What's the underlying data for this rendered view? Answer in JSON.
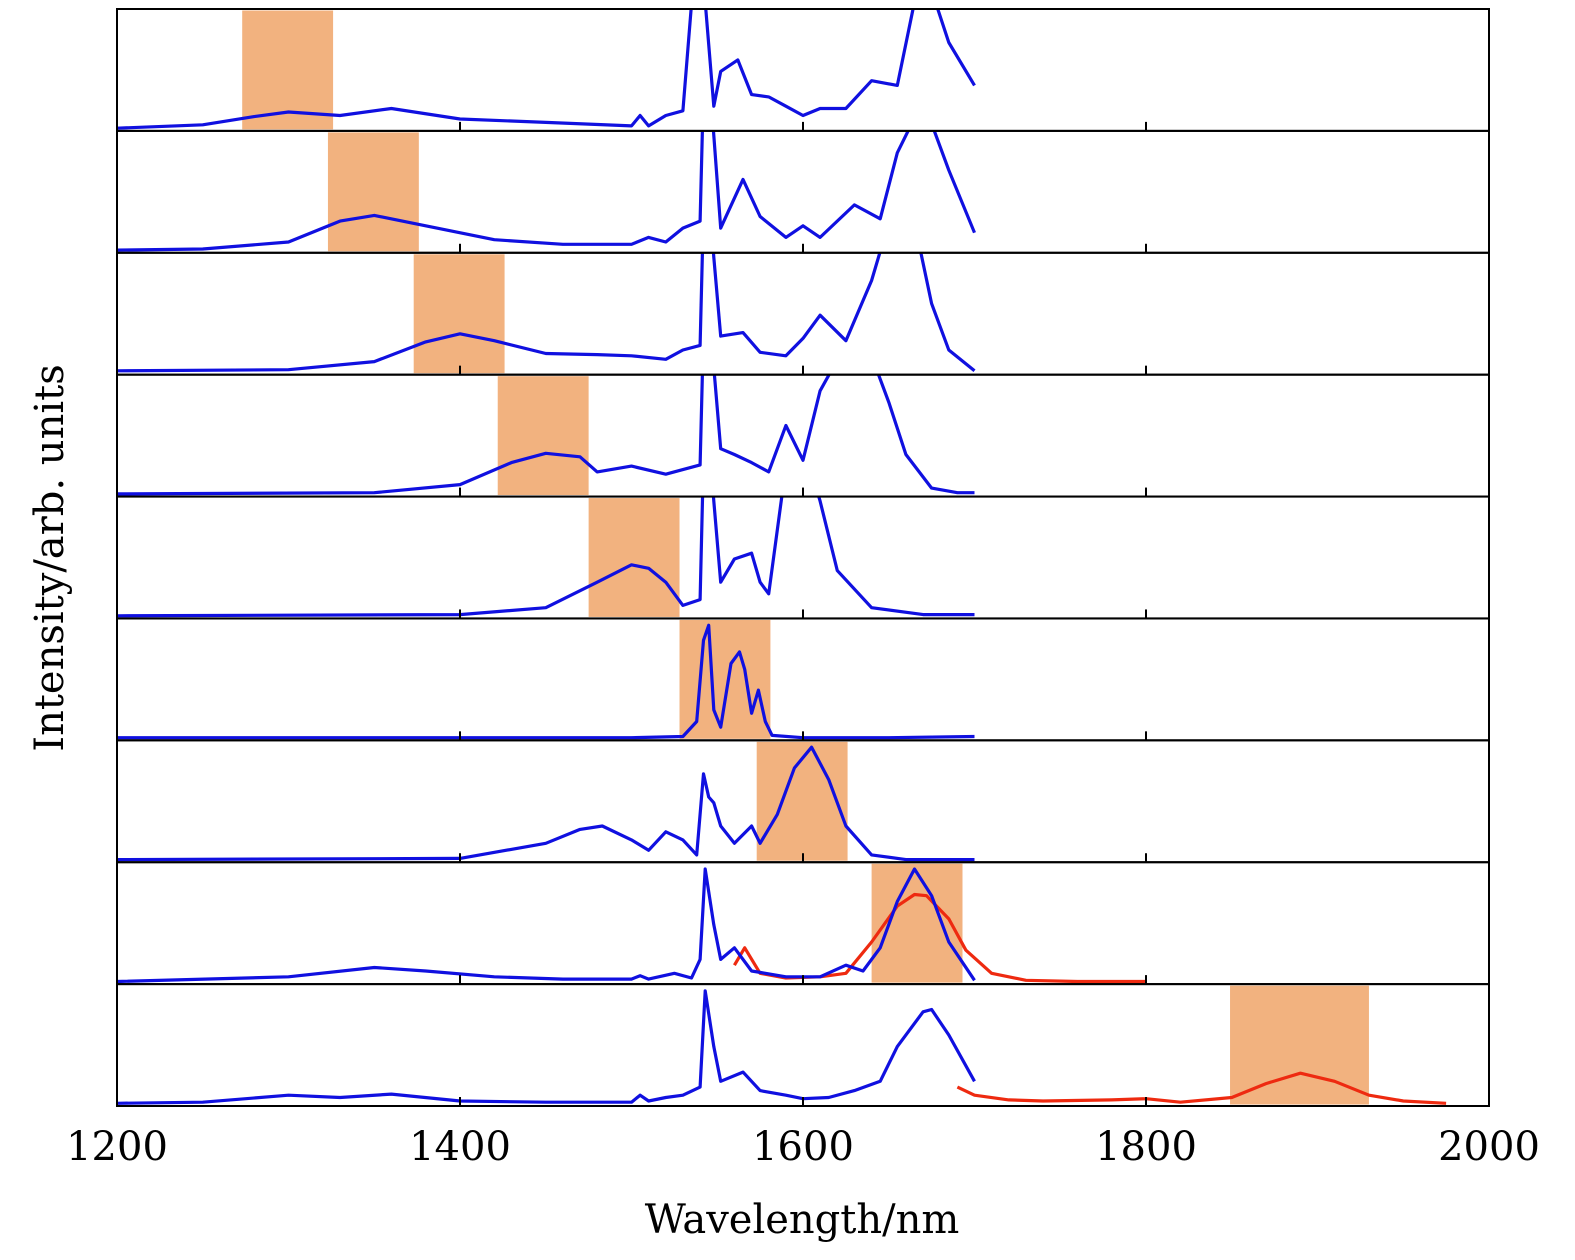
{
  "chart_data": {
    "type": "line",
    "layout": "stacked panels sharing one x axis",
    "xlabel": "Wavelength/nm",
    "ylabel": "Intensity/arb. units",
    "xlim": [
      1200,
      2000
    ],
    "xticks": [
      1200,
      1400,
      1600,
      1800,
      2000
    ],
    "y_tick_labels": "none",
    "grid": false,
    "legend": "none",
    "colors": {
      "measured_spectrum": "#1010e0",
      "extended_spectrum": "#ee2a10",
      "filter_band": "#f2b27f",
      "frame": "#000000"
    },
    "panels": [
      {
        "band_nm": [
          1273,
          1326
        ],
        "series": [
          {
            "color": "measured_spectrum",
            "x": [
              1200,
              1250,
              1280,
              1300,
              1330,
              1360,
              1400,
              1450,
              1500,
              1505,
              1510,
              1520,
              1530,
              1540,
              1543,
              1548,
              1552,
              1562,
              1570,
              1580,
              1590,
              1600,
              1610,
              1625,
              1640,
              1655,
              1665,
              1675,
              1685,
              1700
            ],
            "y": [
              0.01,
              0.04,
              0.11,
              0.15,
              0.12,
              0.18,
              0.09,
              0.06,
              0.03,
              0.12,
              0.03,
              0.12,
              0.16,
              2.0,
              1.1,
              0.2,
              0.5,
              0.6,
              0.3,
              0.28,
              0.2,
              0.12,
              0.18,
              0.18,
              0.42,
              0.38,
              1.1,
              1.2,
              0.75,
              0.38
            ]
          }
        ]
      },
      {
        "band_nm": [
          1323,
          1376
        ],
        "series": [
          {
            "color": "measured_spectrum",
            "x": [
              1200,
              1250,
              1300,
              1330,
              1350,
              1380,
              1420,
              1460,
              1500,
              1510,
              1520,
              1530,
              1540,
              1543,
              1548,
              1552,
              1565,
              1575,
              1590,
              1600,
              1610,
              1630,
              1645,
              1655,
              1670,
              1685,
              1700
            ],
            "y": [
              0.01,
              0.02,
              0.08,
              0.26,
              0.31,
              0.22,
              0.1,
              0.06,
              0.06,
              0.12,
              0.08,
              0.2,
              0.26,
              2.0,
              1.0,
              0.2,
              0.62,
              0.3,
              0.12,
              0.22,
              0.12,
              0.4,
              0.28,
              0.85,
              1.3,
              0.7,
              0.16
            ]
          }
        ]
      },
      {
        "band_nm": [
          1373,
          1426
        ],
        "series": [
          {
            "color": "measured_spectrum",
            "x": [
              1200,
              1300,
              1350,
              1380,
              1400,
              1420,
              1450,
              1480,
              1500,
              1520,
              1530,
              1540,
              1543,
              1548,
              1552,
              1565,
              1575,
              1590,
              1600,
              1610,
              1625,
              1640,
              1650,
              1665,
              1675,
              1685,
              1700
            ],
            "y": [
              0.02,
              0.03,
              0.1,
              0.27,
              0.34,
              0.28,
              0.17,
              0.16,
              0.15,
              0.12,
              0.2,
              0.24,
              2.0,
              1.0,
              0.32,
              0.35,
              0.18,
              0.15,
              0.3,
              0.5,
              0.28,
              0.8,
              1.3,
              1.3,
              0.6,
              0.2,
              0.02
            ]
          }
        ]
      },
      {
        "band_nm": [
          1422,
          1475
        ],
        "series": [
          {
            "color": "measured_spectrum",
            "x": [
              1200,
              1350,
              1400,
              1430,
              1450,
              1470,
              1480,
              1500,
              1520,
              1530,
              1540,
              1543,
              1548,
              1552,
              1560,
              1570,
              1580,
              1590,
              1600,
              1610,
              1625,
              1640,
              1650,
              1660,
              1675,
              1690,
              1700
            ],
            "y": [
              0.01,
              0.02,
              0.09,
              0.28,
              0.36,
              0.33,
              0.2,
              0.25,
              0.18,
              0.22,
              0.26,
              2.0,
              1.1,
              0.4,
              0.35,
              0.28,
              0.2,
              0.6,
              0.3,
              0.9,
              1.3,
              1.2,
              0.8,
              0.35,
              0.06,
              0.02,
              0.02
            ]
          }
        ]
      },
      {
        "band_nm": [
          1475,
          1528
        ],
        "series": [
          {
            "color": "measured_spectrum",
            "x": [
              1200,
              1400,
              1450,
              1480,
              1500,
              1510,
              1520,
              1530,
              1540,
              1543,
              1548,
              1552,
              1560,
              1570,
              1575,
              1580,
              1590,
              1600,
              1610,
              1620,
              1640,
              1670,
              1700
            ],
            "y": [
              0.01,
              0.02,
              0.08,
              0.3,
              0.45,
              0.42,
              0.3,
              0.1,
              0.15,
              2.0,
              1.0,
              0.3,
              0.5,
              0.55,
              0.3,
              0.2,
              1.3,
              1.5,
              1.0,
              0.4,
              0.08,
              0.02,
              0.02
            ]
          }
        ]
      },
      {
        "band_nm": [
          1528,
          1581
        ],
        "series": [
          {
            "color": "measured_spectrum",
            "x": [
              1200,
              1500,
              1530,
              1538,
              1542,
              1545,
              1548,
              1552,
              1558,
              1563,
              1566,
              1570,
              1574,
              1578,
              1582,
              1600,
              1650,
              1700
            ],
            "y": [
              0.01,
              0.01,
              0.02,
              0.15,
              0.85,
              0.98,
              0.25,
              0.1,
              0.65,
              0.75,
              0.6,
              0.22,
              0.42,
              0.15,
              0.03,
              0.01,
              0.01,
              0.02
            ]
          }
        ]
      },
      {
        "band_nm": [
          1573,
          1626
        ],
        "series": [
          {
            "color": "measured_spectrum",
            "x": [
              1200,
              1400,
              1450,
              1470,
              1483,
              1500,
              1510,
              1520,
              1530,
              1538,
              1542,
              1545,
              1548,
              1552,
              1560,
              1570,
              1575,
              1585,
              1595,
              1605,
              1615,
              1625,
              1640,
              1660,
              1700
            ],
            "y": [
              0.01,
              0.02,
              0.15,
              0.27,
              0.3,
              0.18,
              0.09,
              0.25,
              0.18,
              0.05,
              0.75,
              0.55,
              0.5,
              0.3,
              0.15,
              0.3,
              0.15,
              0.4,
              0.8,
              0.98,
              0.7,
              0.3,
              0.05,
              0.01,
              0.01
            ]
          }
        ]
      },
      {
        "band_nm": [
          1640,
          1693
        ],
        "series": [
          {
            "color": "extended_spectrum",
            "x": [
              1560,
              1566,
              1575,
              1590,
              1610,
              1625,
              1640,
              1655,
              1665,
              1672,
              1685,
              1695,
              1710,
              1730,
              1760,
              1800
            ],
            "y": [
              0.15,
              0.3,
              0.08,
              0.04,
              0.05,
              0.08,
              0.35,
              0.66,
              0.76,
              0.75,
              0.55,
              0.28,
              0.08,
              0.02,
              0.01,
              0.01
            ]
          },
          {
            "color": "measured_spectrum",
            "x": [
              1200,
              1300,
              1350,
              1380,
              1420,
              1460,
              1500,
              1505,
              1510,
              1525,
              1535,
              1540,
              1543,
              1548,
              1552,
              1560,
              1570,
              1590,
              1610,
              1625,
              1635,
              1645,
              1655,
              1665,
              1675,
              1685,
              1700
            ],
            "y": [
              0.01,
              0.05,
              0.13,
              0.1,
              0.05,
              0.03,
              0.03,
              0.06,
              0.03,
              0.08,
              0.04,
              0.2,
              0.98,
              0.5,
              0.2,
              0.3,
              0.1,
              0.05,
              0.05,
              0.15,
              0.1,
              0.3,
              0.7,
              0.98,
              0.75,
              0.35,
              0.02
            ]
          }
        ]
      },
      {
        "band_nm": [
          1849,
          1930
        ],
        "series": [
          {
            "color": "extended_spectrum",
            "x": [
              1690,
              1700,
              1720,
              1740,
              1780,
              1800,
              1820,
              1850,
              1870,
              1890,
              1910,
              1930,
              1950,
              1975
            ],
            "y": [
              0.15,
              0.08,
              0.04,
              0.03,
              0.04,
              0.05,
              0.02,
              0.06,
              0.18,
              0.27,
              0.2,
              0.08,
              0.03,
              0.01
            ]
          },
          {
            "color": "measured_spectrum",
            "x": [
              1200,
              1250,
              1300,
              1330,
              1360,
              1400,
              1450,
              1500,
              1505,
              1510,
              1520,
              1530,
              1540,
              1543,
              1548,
              1552,
              1565,
              1575,
              1590,
              1600,
              1615,
              1630,
              1645,
              1655,
              1670,
              1675,
              1685,
              1700
            ],
            "y": [
              0.01,
              0.02,
              0.08,
              0.06,
              0.09,
              0.03,
              0.02,
              0.02,
              0.08,
              0.03,
              0.06,
              0.08,
              0.15,
              0.98,
              0.5,
              0.2,
              0.28,
              0.12,
              0.08,
              0.05,
              0.06,
              0.12,
              0.2,
              0.5,
              0.8,
              0.82,
              0.6,
              0.2
            ]
          }
        ]
      }
    ]
  }
}
